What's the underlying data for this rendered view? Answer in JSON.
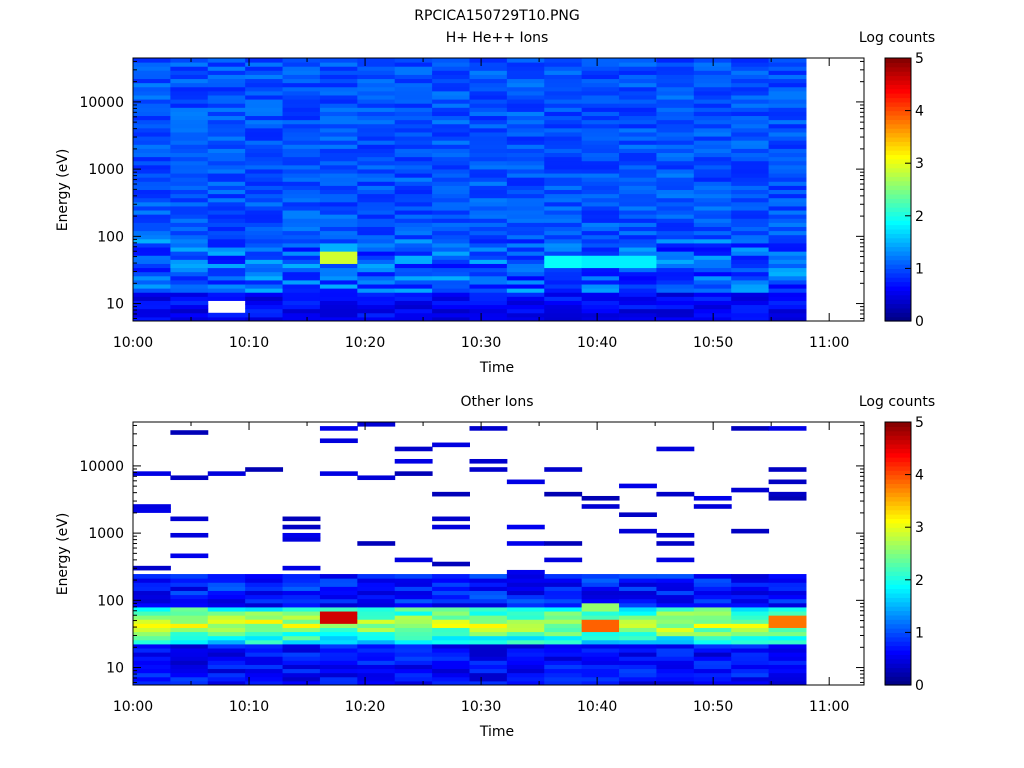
{
  "page": {
    "title": "RPCICA150729T10.PNG"
  },
  "chart_data": [
    {
      "type": "heatmap",
      "title": "H+ He++ Ions",
      "xlabel": "Time",
      "ylabel": "Energy (eV)",
      "x_ticks": [
        "10:00",
        "10:10",
        "10:20",
        "10:30",
        "10:40",
        "10:50",
        "11:00"
      ],
      "y_ticks": [
        "10",
        "100",
        "1000",
        "10000"
      ],
      "y_scale": "log",
      "ylim": [
        5.5,
        45000
      ],
      "xlim": [
        "10:00",
        "11:03"
      ],
      "data_end": "10:58",
      "colorbar": {
        "label": "Log counts",
        "ticks": [
          "0",
          "1",
          "2",
          "3",
          "4",
          "5"
        ],
        "range": [
          0,
          5
        ]
      },
      "features": [
        {
          "time": "10:18",
          "energy_eV": 50,
          "log_counts": 2.9
        },
        {
          "time": "10:38",
          "energy_eV": 45,
          "log_counts": 1.9
        },
        {
          "time": "10:42",
          "energy_eV": 45,
          "log_counts": 1.8
        },
        {
          "time": "10:08",
          "energy_eV": 9,
          "log_counts": null
        }
      ]
    },
    {
      "type": "heatmap",
      "title": "Other Ions",
      "xlabel": "Time",
      "ylabel": "Energy (eV)",
      "x_ticks": [
        "10:00",
        "10:10",
        "10:20",
        "10:30",
        "10:40",
        "10:50",
        "11:00"
      ],
      "y_ticks": [
        "10",
        "100",
        "1000",
        "10000"
      ],
      "y_scale": "log",
      "ylim": [
        5.5,
        45000
      ],
      "xlim": [
        "10:00",
        "11:03"
      ],
      "data_end": "10:58",
      "colorbar": {
        "label": "Log counts",
        "ticks": [
          "0",
          "1",
          "2",
          "3",
          "4",
          "5"
        ],
        "range": [
          0,
          5
        ]
      },
      "features": [
        {
          "time": "10:18",
          "energy_eV": 55,
          "log_counts": 4.6
        },
        {
          "time": "10:40",
          "energy_eV": 45,
          "log_counts": 3.9
        },
        {
          "time": "10:55",
          "energy_eV": 50,
          "log_counts": 3.8
        },
        {
          "time": "10:40",
          "energy_eV": 80,
          "log_counts": 2.6
        }
      ]
    }
  ]
}
